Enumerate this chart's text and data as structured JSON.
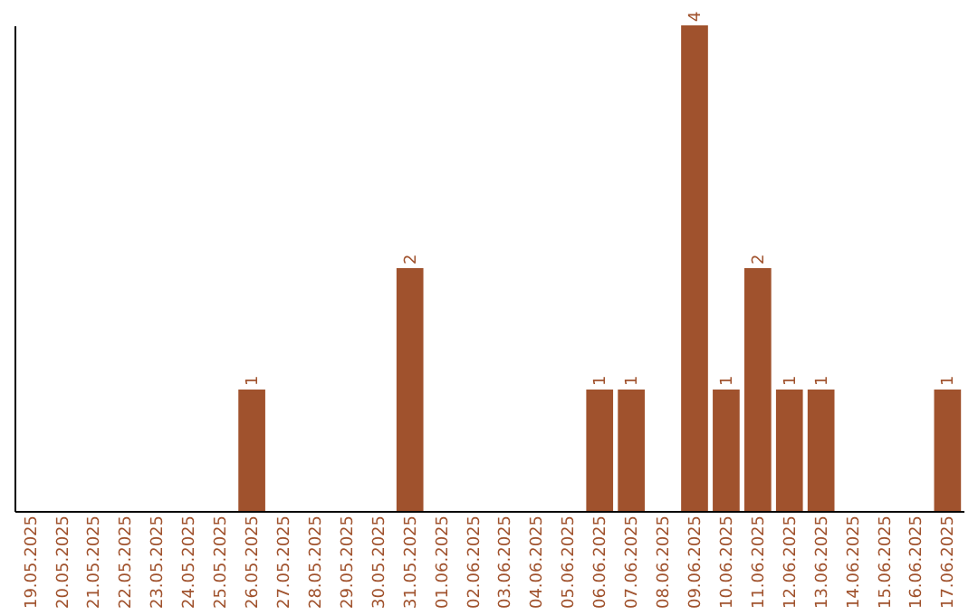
{
  "chart_data": {
    "type": "bar",
    "categories": [
      "19.05.2025",
      "20.05.2025",
      "21.05.2025",
      "22.05.2025",
      "23.05.2025",
      "24.05.2025",
      "25.05.2025",
      "26.05.2025",
      "27.05.2025",
      "28.05.2025",
      "29.05.2025",
      "30.05.2025",
      "31.05.2025",
      "01.06.2025",
      "02.06.2025",
      "03.06.2025",
      "04.06.2025",
      "05.06.2025",
      "06.06.2025",
      "07.06.2025",
      "08.06.2025",
      "09.06.2025",
      "10.06.2025",
      "11.06.2025",
      "12.06.2025",
      "13.06.2025",
      "14.06.2025",
      "15.06.2025",
      "16.06.2025",
      "17.06.2025"
    ],
    "values": [
      0,
      0,
      0,
      0,
      0,
      0,
      0,
      1,
      0,
      0,
      0,
      0,
      2,
      0,
      0,
      0,
      0,
      0,
      1,
      1,
      0,
      4,
      1,
      2,
      1,
      1,
      0,
      0,
      0,
      1
    ],
    "value_labels": [
      null,
      null,
      null,
      null,
      null,
      null,
      null,
      "1",
      null,
      null,
      null,
      null,
      "2",
      null,
      null,
      null,
      null,
      null,
      "1",
      "1",
      null,
      "4",
      "1",
      "2",
      "1",
      "1",
      null,
      null,
      null,
      "1"
    ],
    "color": "#a0522d",
    "ylim": [
      0,
      4
    ],
    "tick_labels": "x",
    "grid": false
  }
}
